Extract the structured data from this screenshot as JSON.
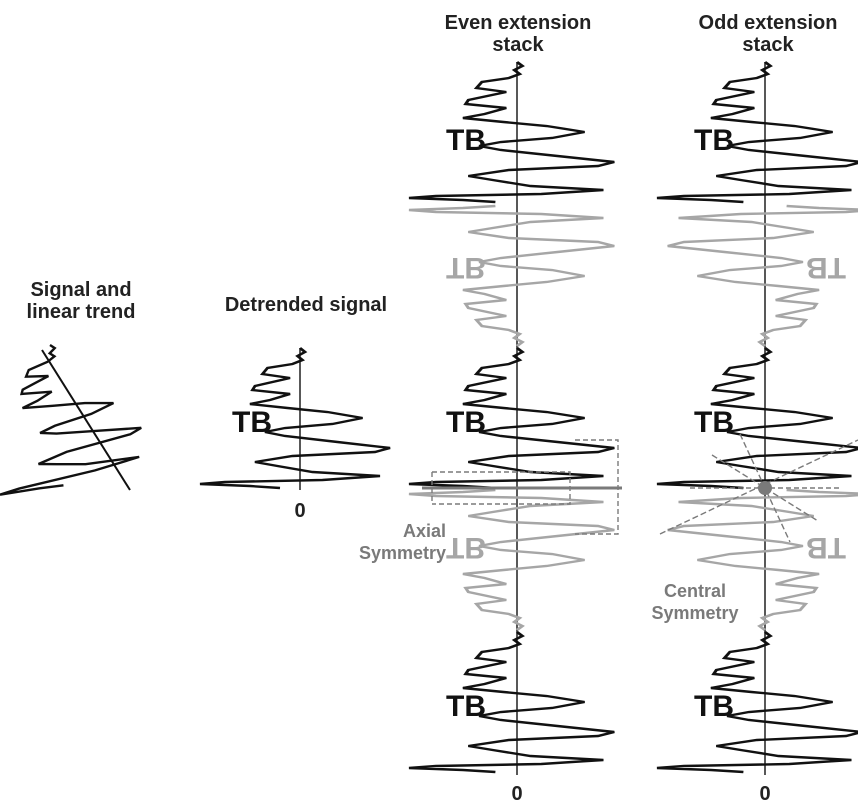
{
  "labels": {
    "signal_and_trend": "Signal and\nlinear trend",
    "detrended": "Detrended signal",
    "even_stack": "Even extension\nstack",
    "odd_stack": "Odd extension\nstack",
    "axial_symmetry": "Axial\nSymmetry",
    "central_symmetry": "Central\nSymmetry",
    "zero_detrended": "0",
    "zero_even": "0",
    "zero_odd": "0"
  },
  "glyphs": {
    "original": "TB",
    "mirrored": "TB"
  },
  "colors": {
    "signal": "#111111",
    "reflected": "#a6a6a6",
    "axis": "#111111",
    "annotation": "#7a7a7a"
  }
}
